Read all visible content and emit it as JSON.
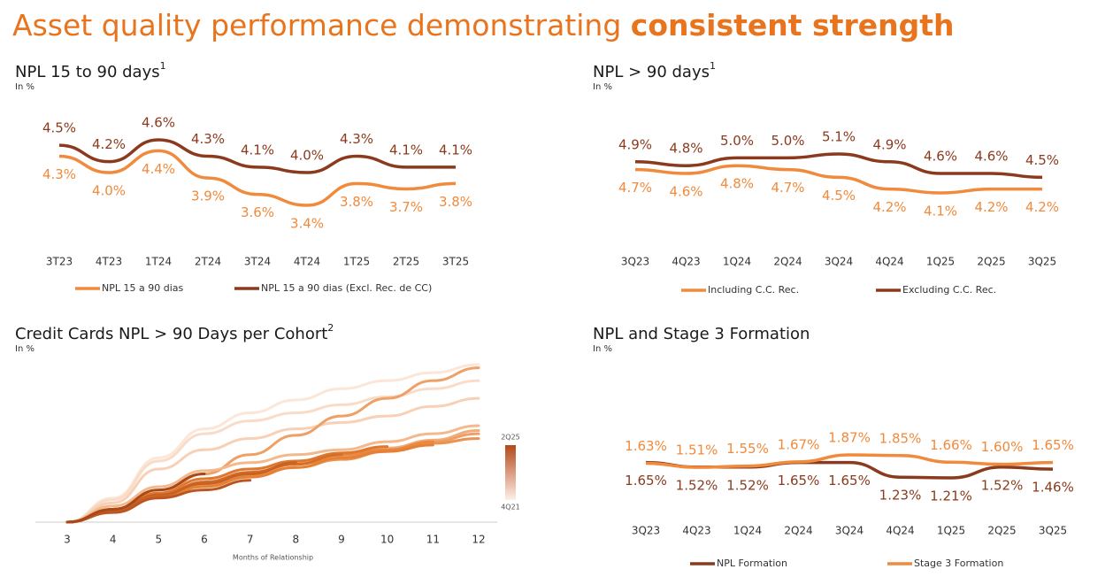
{
  "slide_title": "Asset quality performance demonstrating",
  "slide_title_emphasis": "consistent strength",
  "chart_data": [
    {
      "type": "line",
      "title": "NPL 15 to 90 days",
      "footnote": "1",
      "subtitle": "In %",
      "categories": [
        "3T23",
        "4T23",
        "1T24",
        "2T24",
        "3T24",
        "4T24",
        "1T25",
        "2T25",
        "3T25"
      ],
      "series": [
        {
          "name": "NPL 15 a 90 dias",
          "color": "#f08a3c",
          "values": [
            4.3,
            4.0,
            4.4,
            3.9,
            3.6,
            3.4,
            3.8,
            3.7,
            3.8
          ],
          "value_labels": [
            "4.3%",
            "4.0%",
            "4.4%",
            "3.9%",
            "3.6%",
            "3.4%",
            "3.8%",
            "3.7%",
            "3.8%"
          ]
        },
        {
          "name": "NPL 15 a 90 dias (Excl. Rec. de CC)",
          "color": "#8b3a1e",
          "values": [
            4.5,
            4.2,
            4.6,
            4.3,
            4.1,
            4.0,
            4.3,
            4.1,
            4.1
          ],
          "value_labels": [
            "4.5%",
            "4.2%",
            "4.6%",
            "4.3%",
            "4.1%",
            "4.0%",
            "4.3%",
            "4.1%",
            "4.1%"
          ]
        }
      ]
    },
    {
      "type": "line",
      "title": "NPL > 90 days",
      "footnote": "1",
      "subtitle": "In %",
      "categories": [
        "3Q23",
        "4Q23",
        "1Q24",
        "2Q24",
        "3Q24",
        "4Q24",
        "1Q25",
        "2Q25",
        "3Q25"
      ],
      "series": [
        {
          "name": "Including C.C. Rec.",
          "color": "#f08a3c",
          "values": [
            4.7,
            4.6,
            4.8,
            4.7,
            4.5,
            4.2,
            4.1,
            4.2,
            4.2
          ],
          "value_labels": [
            "4.7%",
            "4.6%",
            "4.8%",
            "4.7%",
            "4.5%",
            "4.2%",
            "4.1%",
            "4.2%",
            "4.2%"
          ]
        },
        {
          "name": "Excluding C.C. Rec.",
          "color": "#8b3a1e",
          "values": [
            4.9,
            4.8,
            5.0,
            5.0,
            5.1,
            4.9,
            4.6,
            4.6,
            4.5
          ],
          "value_labels": [
            "4.9%",
            "4.8%",
            "5.0%",
            "5.0%",
            "5.1%",
            "4.9%",
            "4.6%",
            "4.6%",
            "4.5%"
          ]
        }
      ]
    },
    {
      "type": "cohort",
      "title": "Credit Cards NPL > 90 Days per Cohort",
      "footnote": "2",
      "subtitle": "In %",
      "xlabel": "Months of Relationship",
      "xticks": [
        3,
        4,
        5,
        6,
        7,
        8,
        9,
        10,
        11,
        12
      ],
      "colorbar": {
        "top": "2Q25",
        "bottom": "4Q21"
      },
      "series": [
        {
          "color": "#fbe6d8",
          "values": [
            0,
            15,
            40,
            58,
            68,
            76,
            83,
            88,
            93,
            98
          ]
        },
        {
          "color": "#f9dcc8",
          "values": [
            0,
            14,
            38,
            55,
            63,
            68,
            73,
            78,
            83,
            88
          ]
        },
        {
          "color": "#f7d0b6",
          "values": [
            0,
            12,
            33,
            45,
            52,
            58,
            62,
            66,
            72,
            77
          ]
        },
        {
          "color": "#eea066",
          "values": [
            0,
            7,
            18,
            30,
            42,
            54,
            66,
            77,
            88,
            96
          ]
        },
        {
          "color": "#f3b98c",
          "values": [
            0,
            10,
            22,
            32,
            37,
            42,
            45,
            50,
            55,
            60
          ]
        },
        {
          "color": "#f1ac78",
          "values": [
            0,
            8,
            17,
            24,
            31,
            37,
            42,
            46,
            51,
            57
          ]
        },
        {
          "color": "#ef9f66",
          "values": [
            0,
            8,
            18,
            24,
            30,
            36,
            41,
            45,
            50,
            55
          ]
        },
        {
          "color": "#ec9250",
          "values": [
            0,
            7,
            16,
            23,
            29,
            34,
            39,
            44,
            49,
            52
          ]
        },
        {
          "color": "#e98840",
          "values": [
            0,
            8,
            17,
            24,
            30,
            36,
            42,
            45,
            50,
            null
          ]
        },
        {
          "color": "#e58035",
          "values": [
            0,
            8,
            16,
            22,
            28,
            34,
            40,
            44,
            48,
            null
          ]
        },
        {
          "color": "#de782e",
          "values": [
            0,
            8,
            18,
            27,
            33,
            38,
            43,
            47,
            null,
            null
          ]
        },
        {
          "color": "#d46e28",
          "values": [
            0,
            7,
            16,
            25,
            31,
            36,
            42,
            null,
            null,
            null
          ]
        },
        {
          "color": "#c86224",
          "values": [
            0,
            7,
            17,
            24,
            30,
            37,
            null,
            null,
            null,
            null
          ]
        },
        {
          "color": "#bb5620",
          "values": [
            0,
            6,
            15,
            20,
            26,
            null,
            null,
            null,
            null,
            null
          ]
        },
        {
          "color": "#a9481b",
          "values": [
            0,
            8,
            20,
            30,
            null,
            null,
            null,
            null,
            null,
            null
          ]
        }
      ]
    },
    {
      "type": "line",
      "title": "NPL and Stage 3 Formation",
      "subtitle": "In %",
      "categories": [
        "3Q23",
        "4Q23",
        "1Q24",
        "2Q24",
        "3Q24",
        "4Q24",
        "1Q25",
        "2Q25",
        "3Q25"
      ],
      "series": [
        {
          "name": "NPL Formation",
          "color": "#8b3a1e",
          "values": [
            1.65,
            1.52,
            1.52,
            1.65,
            1.65,
            1.23,
            1.21,
            1.52,
            1.46
          ],
          "value_labels": [
            "1.65%",
            "1.52%",
            "1.52%",
            "1.65%",
            "1.65%",
            "1.23%",
            "1.21%",
            "1.52%",
            "1.46%"
          ]
        },
        {
          "name": "Stage 3 Formation",
          "color": "#f08a3c",
          "values": [
            1.63,
            1.51,
            1.55,
            1.67,
            1.87,
            1.85,
            1.66,
            1.6,
            1.65
          ],
          "value_labels": [
            "1.63%",
            "1.51%",
            "1.55%",
            "1.67%",
            "1.87%",
            "1.85%",
            "1.66%",
            "1.60%",
            "1.65%"
          ]
        }
      ]
    }
  ]
}
